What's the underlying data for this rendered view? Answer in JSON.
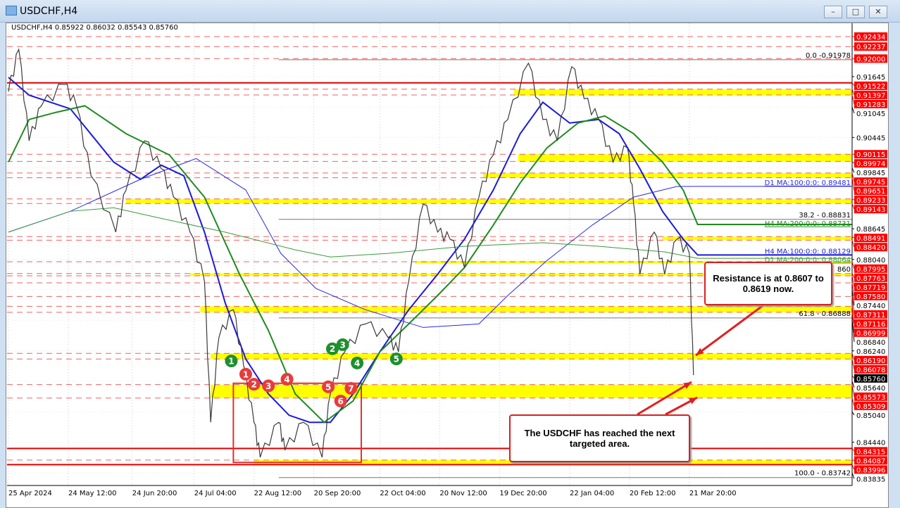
{
  "window": {
    "title": "USDCHF,H4",
    "buttons": [
      "minimize",
      "restore",
      "close"
    ]
  },
  "legend": {
    "symbol": "USDCHF,H4",
    "open": "0.85922",
    "high": "0.86032",
    "low": "0.85543",
    "close": "0.85760"
  },
  "callouts": {
    "resistance": "Resistance is at 0.8607 to 0.8619 now.",
    "target": "The USDCHF has reached the next targeted area."
  },
  "colors": {
    "up_down_line": "#3a3a3a",
    "h4_ma100": "#1a1adc",
    "h4_ma200": "#1f8a1f",
    "d1_ma100": "#2a2ae0",
    "d1_ma200": "#3b9a3b",
    "zone": "#ffff00",
    "level_label": "#ff0000",
    "current_label": "#000000",
    "callout_border": "#d62020"
  },
  "chart_data": {
    "type": "line",
    "title": "USDCHF,H4",
    "ylim": [
      0.83835,
      0.92434
    ],
    "xlim": [
      "2024-04-25",
      "2025-04-01"
    ],
    "grid": true,
    "x_ticks": [
      [
        "2024-04-25",
        "25 Apr 2024"
      ],
      [
        "2024-05-24",
        "24 May 12:00"
      ],
      [
        "2024-06-24",
        "24 Jun 20:00"
      ],
      [
        "2024-07-24",
        "24 Jul 04:00"
      ],
      [
        "2024-08-22",
        "22 Aug 12:00"
      ],
      [
        "2024-09-20",
        "20 Sep 20:00"
      ],
      [
        "2024-10-22",
        "22 Oct 04:00"
      ],
      [
        "2024-11-20",
        "20 Nov 12:00"
      ],
      [
        "2024-12-19",
        "19 Dec 20:00"
      ],
      [
        "2025-01-22",
        "22 Jan 04:00"
      ],
      [
        "2025-02-20",
        "20 Feb 12:00"
      ],
      [
        "2025-03-21",
        "21 Mar 20:00"
      ]
    ],
    "y_ticks": [
      "0.91645",
      "0.91045",
      "0.90445",
      "0.89845",
      "0.88645",
      "0.88040",
      "0.87440",
      "0.86840",
      "0.86240",
      "0.85640",
      "0.85040",
      "0.84440",
      "0.83835"
    ],
    "price": [
      [
        "2024-04-25",
        0.9135
      ],
      [
        "2024-04-30",
        0.9218
      ],
      [
        "2024-05-05",
        0.9038
      ],
      [
        "2024-05-11",
        0.9107
      ],
      [
        "2024-05-22",
        0.9149
      ],
      [
        "2024-05-28",
        0.9107
      ],
      [
        "2024-06-04",
        0.8969
      ],
      [
        "2024-06-16",
        0.8858
      ],
      [
        "2024-06-21",
        0.8941
      ],
      [
        "2024-06-30",
        0.9038
      ],
      [
        "2024-07-08",
        0.8983
      ],
      [
        "2024-07-14",
        0.8927
      ],
      [
        "2024-07-22",
        0.8858
      ],
      [
        "2024-07-29",
        0.8761
      ],
      [
        "2024-08-01",
        0.8483
      ],
      [
        "2024-08-05",
        0.865
      ],
      [
        "2024-08-12",
        0.8705
      ],
      [
        "2024-08-17",
        0.8594
      ],
      [
        "2024-08-22",
        0.8483
      ],
      [
        "2024-08-25",
        0.8414
      ],
      [
        "2024-09-03",
        0.8483
      ],
      [
        "2024-09-06",
        0.8428
      ],
      [
        "2024-09-15",
        0.8483
      ],
      [
        "2024-09-24",
        0.8414
      ],
      [
        "2024-09-28",
        0.8539
      ],
      [
        "2024-10-05",
        0.8622
      ],
      [
        "2024-10-15",
        0.8677
      ],
      [
        "2024-10-26",
        0.865
      ],
      [
        "2024-10-31",
        0.8622
      ],
      [
        "2024-11-05",
        0.8761
      ],
      [
        "2024-11-12",
        0.8913
      ],
      [
        "2024-11-19",
        0.8858
      ],
      [
        "2024-11-25",
        0.8844
      ],
      [
        "2024-12-02",
        0.8788
      ],
      [
        "2024-12-09",
        0.8927
      ],
      [
        "2024-12-16",
        0.901
      ],
      [
        "2024-12-23",
        0.908
      ],
      [
        "2025-01-02",
        0.9191
      ],
      [
        "2025-01-09",
        0.908
      ],
      [
        "2025-01-16",
        0.9038
      ],
      [
        "2025-01-23",
        0.9184
      ],
      [
        "2025-01-29",
        0.9121
      ],
      [
        "2025-02-05",
        0.908
      ],
      [
        "2025-02-12",
        0.8996
      ],
      [
        "2025-02-19",
        0.9024
      ],
      [
        "2025-02-22",
        0.8913
      ],
      [
        "2025-02-25",
        0.8775
      ],
      [
        "2025-03-04",
        0.8858
      ],
      [
        "2025-03-09",
        0.8775
      ],
      [
        "2025-03-15",
        0.8844
      ],
      [
        "2025-03-21",
        0.8816
      ],
      [
        "2025-03-23",
        0.8576
      ]
    ],
    "current_price": "0.85760",
    "moving_averages": [
      {
        "name": "H4 MA:100:0:0: 0.88129",
        "color": "#1a1adc",
        "width": 2,
        "values": [
          [
            "2024-04-25",
            0.9163
          ],
          [
            "2024-05-05",
            0.9128
          ],
          [
            "2024-05-25",
            0.9101
          ],
          [
            "2024-06-15",
            0.8996
          ],
          [
            "2024-06-28",
            0.8962
          ],
          [
            "2024-07-08",
            0.899
          ],
          [
            "2024-07-19",
            0.8969
          ],
          [
            "2024-07-29",
            0.8858
          ],
          [
            "2024-08-08",
            0.8719
          ],
          [
            "2024-08-18",
            0.8608
          ],
          [
            "2024-08-29",
            0.8539
          ],
          [
            "2024-09-08",
            0.8497
          ],
          [
            "2024-09-18",
            0.8483
          ],
          [
            "2024-09-28",
            0.8483
          ],
          [
            "2024-10-09",
            0.8539
          ],
          [
            "2024-10-22",
            0.8622
          ],
          [
            "2024-11-05",
            0.8705
          ],
          [
            "2024-11-19",
            0.8775
          ],
          [
            "2024-12-02",
            0.8844
          ],
          [
            "2024-12-16",
            0.8941
          ],
          [
            "2024-12-29",
            0.9052
          ],
          [
            "2025-01-09",
            0.9114
          ],
          [
            "2025-01-22",
            0.9073
          ],
          [
            "2025-02-05",
            0.908
          ],
          [
            "2025-02-15",
            0.9052
          ],
          [
            "2025-02-25",
            0.8983
          ],
          [
            "2025-03-08",
            0.8899
          ],
          [
            "2025-03-18",
            0.8844
          ],
          [
            "2025-03-25",
            0.88129
          ]
        ]
      },
      {
        "name": "H4 MA:200:0:0: 0.88731",
        "color": "#1f8a1f",
        "width": 2,
        "values": [
          [
            "2024-04-25",
            0.8996
          ],
          [
            "2024-05-05",
            0.908
          ],
          [
            "2024-05-18",
            0.9094
          ],
          [
            "2024-06-01",
            0.9107
          ],
          [
            "2024-06-21",
            0.9052
          ],
          [
            "2024-07-12",
            0.901
          ],
          [
            "2024-07-29",
            0.8927
          ],
          [
            "2024-08-15",
            0.8775
          ],
          [
            "2024-08-29",
            0.8664
          ],
          [
            "2024-09-11",
            0.8539
          ],
          [
            "2024-09-25",
            0.8483
          ],
          [
            "2024-10-09",
            0.8525
          ],
          [
            "2024-10-22",
            0.8622
          ],
          [
            "2024-11-05",
            0.8677
          ],
          [
            "2024-11-19",
            0.8733
          ],
          [
            "2024-12-02",
            0.8788
          ],
          [
            "2024-12-16",
            0.8872
          ],
          [
            "2024-12-29",
            0.8955
          ],
          [
            "2025-01-11",
            0.9024
          ],
          [
            "2025-01-26",
            0.9073
          ],
          [
            "2025-02-08",
            0.9087
          ],
          [
            "2025-02-22",
            0.9052
          ],
          [
            "2025-03-08",
            0.8996
          ],
          [
            "2025-03-18",
            0.8941
          ],
          [
            "2025-03-25",
            0.88731
          ]
        ]
      },
      {
        "name": "D1 MA:100:0:0: 0.89481",
        "color": "#2a2ae0",
        "width": 1,
        "values": [
          [
            "2024-04-25",
            0.8858
          ],
          [
            "2024-05-25",
            0.8899
          ],
          [
            "2024-06-28",
            0.8962
          ],
          [
            "2024-07-25",
            0.9003
          ],
          [
            "2024-08-18",
            0.8941
          ],
          [
            "2024-09-04",
            0.8816
          ],
          [
            "2024-09-21",
            0.8747
          ],
          [
            "2024-10-15",
            0.8705
          ],
          [
            "2024-11-12",
            0.867
          ],
          [
            "2024-12-09",
            0.8677
          ],
          [
            "2024-12-23",
            0.8733
          ],
          [
            "2025-01-11",
            0.8802
          ],
          [
            "2025-02-02",
            0.8872
          ],
          [
            "2025-02-22",
            0.8927
          ],
          [
            "2025-03-15",
            0.8948
          ],
          [
            "2025-03-25",
            0.89481
          ]
        ]
      },
      {
        "name": "D1 MA:200:0:0: 0.88064",
        "color": "#3b9a3b",
        "width": 1,
        "values": [
          [
            "2024-04-25",
            0.8858
          ],
          [
            "2024-05-25",
            0.8899
          ],
          [
            "2024-06-15",
            0.8906
          ],
          [
            "2024-07-08",
            0.8885
          ],
          [
            "2024-08-08",
            0.8858
          ],
          [
            "2024-09-11",
            0.8823
          ],
          [
            "2024-09-28",
            0.8809
          ],
          [
            "2024-10-26",
            0.8816
          ],
          [
            "2024-12-02",
            0.883
          ],
          [
            "2025-01-09",
            0.8837
          ],
          [
            "2025-02-05",
            0.883
          ],
          [
            "2025-03-09",
            0.8819
          ],
          [
            "2025-03-25",
            0.88064
          ]
        ]
      }
    ],
    "zones": [
      [
        "2024-12-26",
        0.91397,
        0.91283
      ],
      [
        "2024-12-28",
        0.90115,
        0.89974
      ],
      [
        "2024-12-11",
        0.89745,
        0.89651
      ],
      [
        "2024-06-21",
        0.89233,
        0.89143
      ],
      [
        "2025-03-08",
        0.88491,
        0.8842
      ],
      [
        "2024-11-08",
        0.8801,
        0.8796
      ],
      [
        "2024-07-22",
        0.87763,
        0.87719
      ],
      [
        "2024-07-27",
        0.87116,
        0.86999
      ],
      [
        "2024-08-01",
        0.8619,
        0.86078
      ],
      [
        "2024-08-01",
        0.85573,
        0.85309
      ],
      [
        "2024-08-22",
        0.84087,
        0.83996
      ]
    ],
    "solid_red_levels": [
      0.91522,
      0.84315,
      0.83996
    ],
    "level_labels": [
      "0.92434",
      "0.92237",
      "0.92000",
      "0.91522",
      "0.91397",
      "0.91283",
      "0.90115",
      "0.89974",
      "0.89745",
      "0.89651",
      "0.89233",
      "0.89143",
      "0.88491",
      "0.88420",
      "0.87995",
      "0.87763",
      "0.87719",
      "0.87580",
      "0.87311",
      "0.87116",
      "0.86999",
      "0.86190",
      "0.86078",
      "0.85573",
      "0.85309",
      "0.84315",
      "0.84087",
      "0.83996"
    ],
    "fibonacci": {
      "start": "2024-09-03",
      "levels": [
        [
          "0.0 -0.91978",
          0.91978
        ],
        [
          "38.2 - 0.88831",
          0.88831
        ],
        [
          "61.8 - 0.86888",
          0.86888
        ],
        [
          "100.0 - 0.83742",
          0.83742
        ]
      ],
      "partial_label": [
        "860",
        0.8786
      ]
    },
    "box": {
      "from": "2024-08-12",
      "to": "2024-10-13",
      "high": 0.856,
      "low": 0.8404
    },
    "markers": [
      {
        "label": "1",
        "color": "#1e8f2e",
        "date": "2024-08-11",
        "price": 0.8604
      },
      {
        "label": "2",
        "color": "#1e8f2e",
        "date": "2024-09-29",
        "price": 0.8628
      },
      {
        "label": "3",
        "color": "#1e8f2e",
        "date": "2024-10-04",
        "price": 0.8636
      },
      {
        "label": "4",
        "color": "#1e8f2e",
        "date": "2024-10-11",
        "price": 0.86
      },
      {
        "label": "5",
        "color": "#1e8f2e",
        "date": "2024-10-30",
        "price": 0.8608
      },
      {
        "label": "1",
        "color": "#e83b3b",
        "date": "2024-08-18",
        "price": 0.8578
      },
      {
        "label": "2",
        "color": "#e83b3b",
        "date": "2024-08-22",
        "price": 0.8558
      },
      {
        "label": "3",
        "color": "#e83b3b",
        "date": "2024-08-29",
        "price": 0.8555
      },
      {
        "label": "4",
        "color": "#e83b3b",
        "date": "2024-09-07",
        "price": 0.8568
      },
      {
        "label": "5",
        "color": "#e83b3b",
        "date": "2024-09-27",
        "price": 0.8553
      },
      {
        "label": "6",
        "color": "#e83b3b",
        "date": "2024-10-03",
        "price": 0.8525
      },
      {
        "label": "7",
        "color": "#e83b3b",
        "date": "2024-10-08",
        "price": 0.855
      }
    ]
  }
}
